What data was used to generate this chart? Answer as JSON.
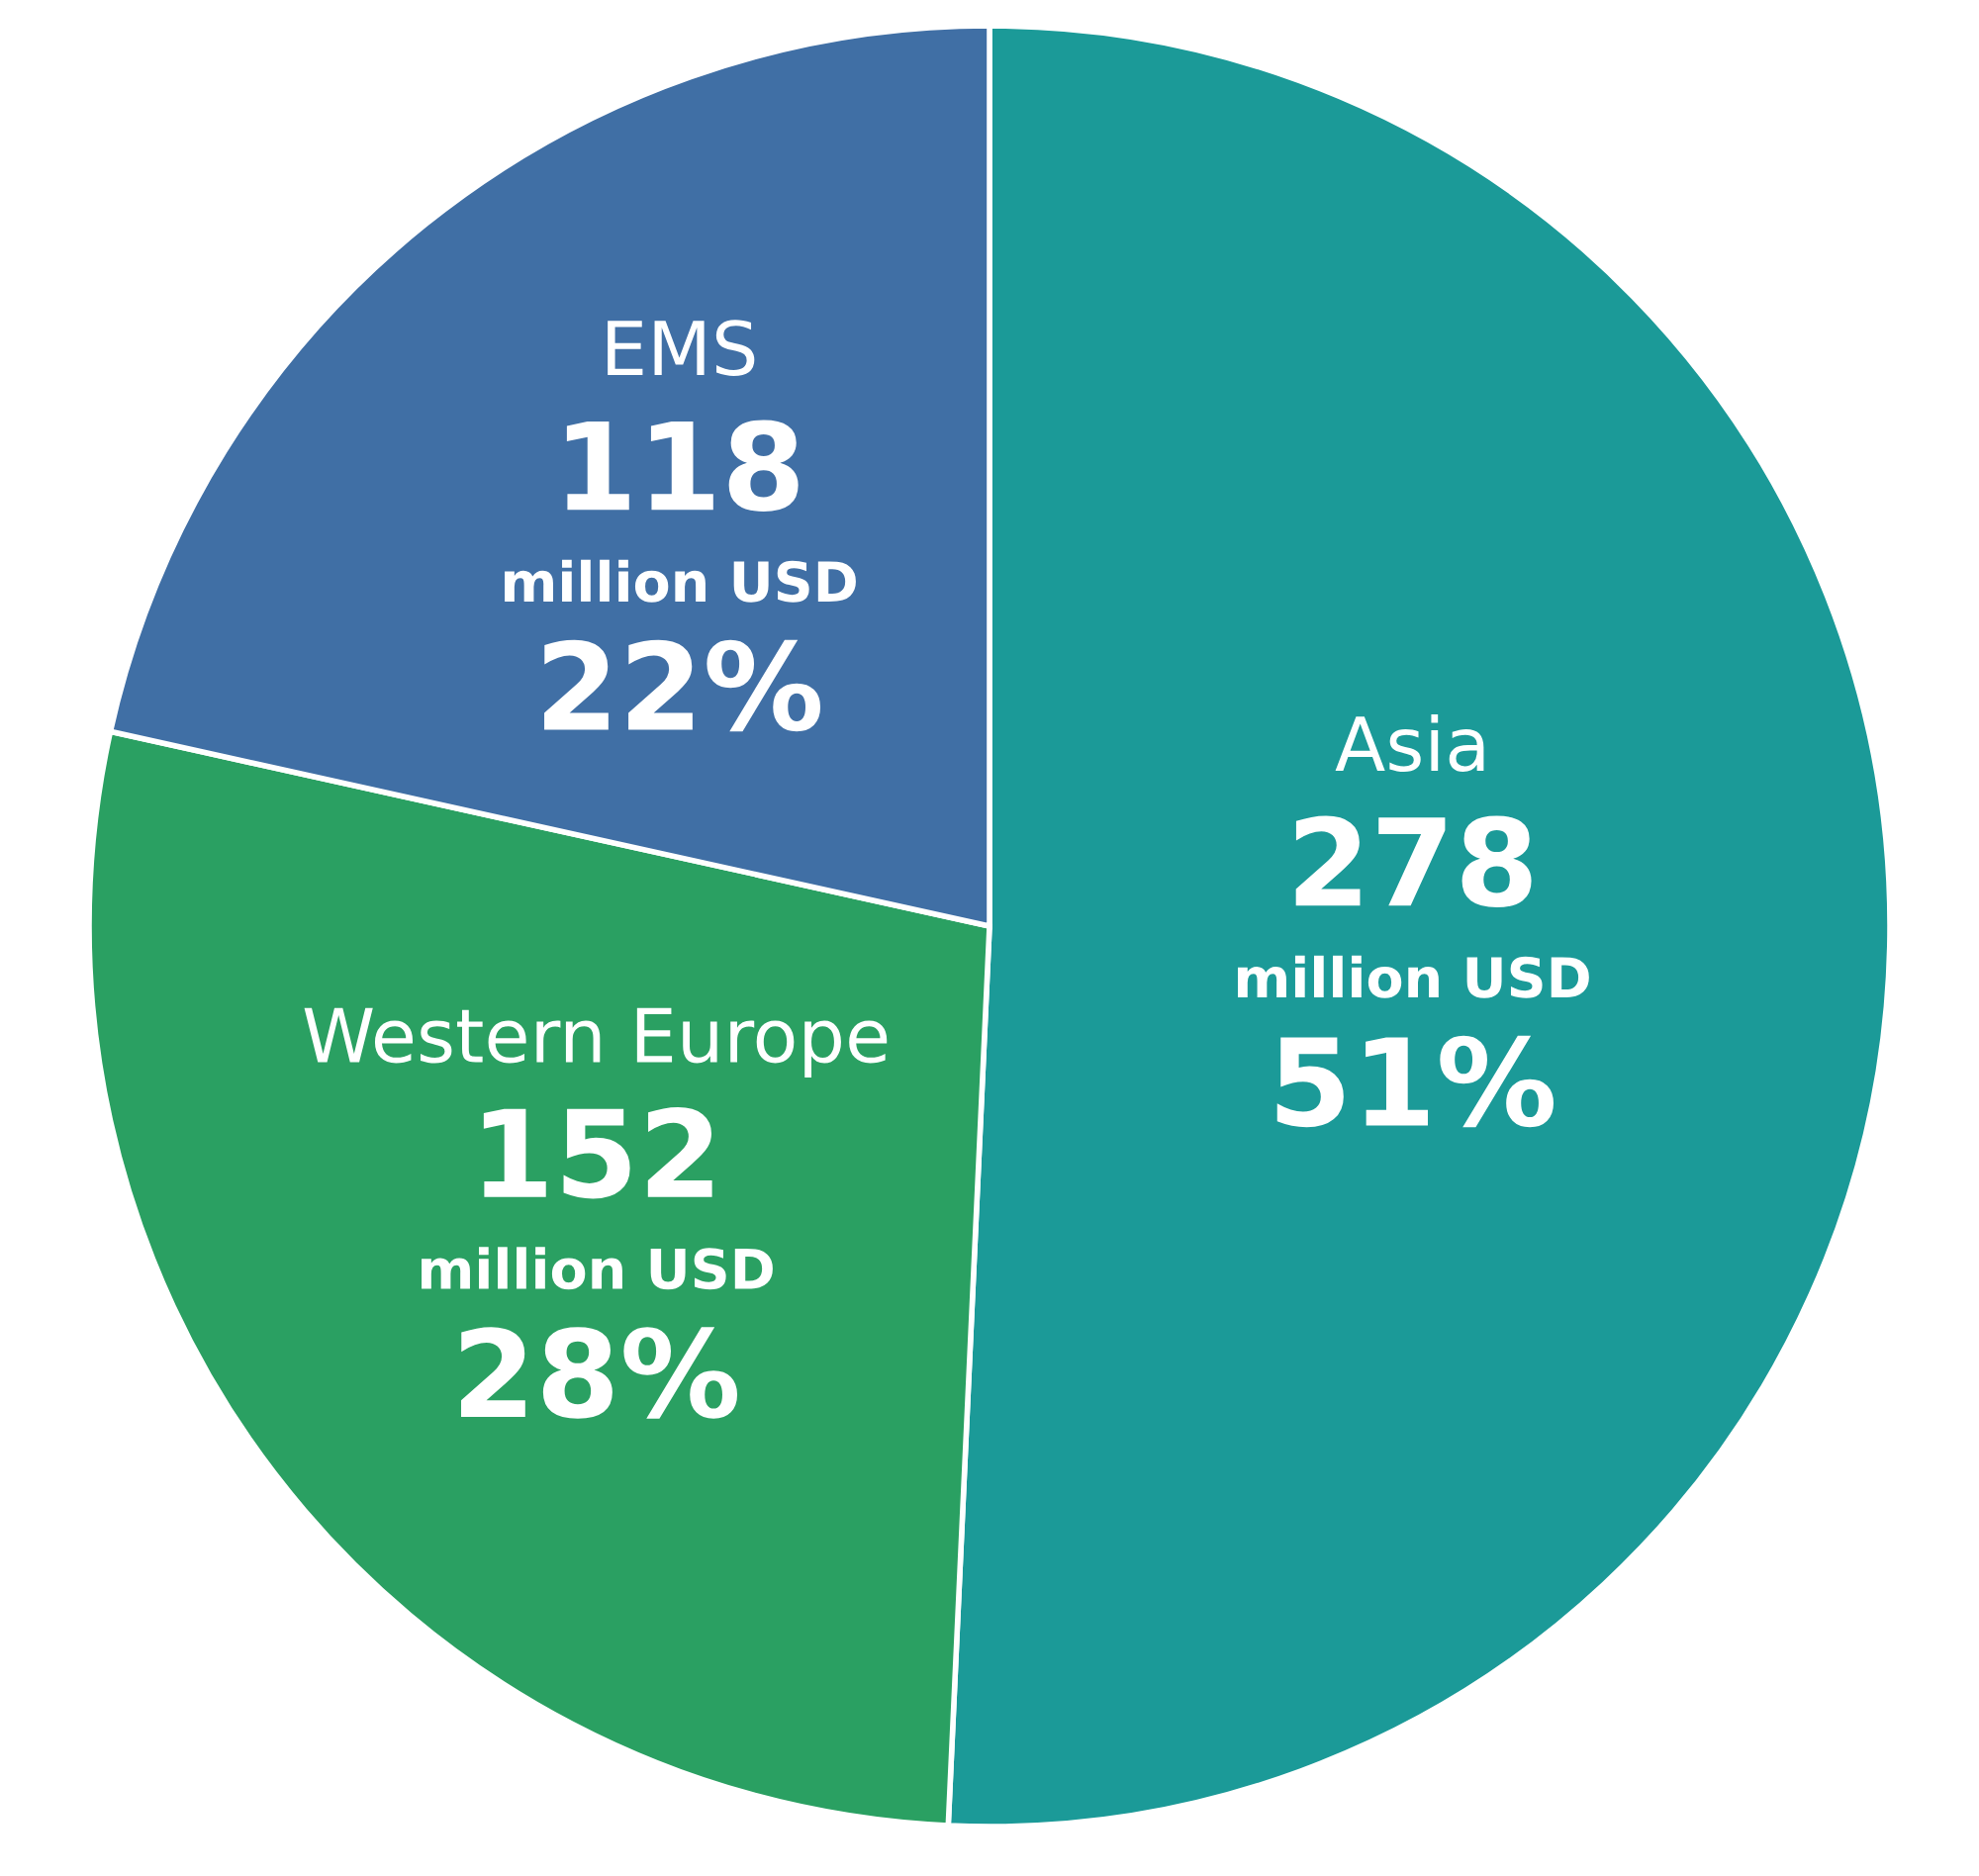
{
  "chart_data": {
    "type": "pie",
    "categories": [
      "Asia",
      "Western Europe",
      "EMS"
    ],
    "values": [
      278,
      152,
      118
    ],
    "colors": [
      "#1b9a98",
      "#2aa062",
      "#406fa5"
    ],
    "value_labels": [
      "278\nmillion USD\n51%",
      "152\nmillion USD\n28%",
      "118\nmillion USD\n22%"
    ]
  }
}
